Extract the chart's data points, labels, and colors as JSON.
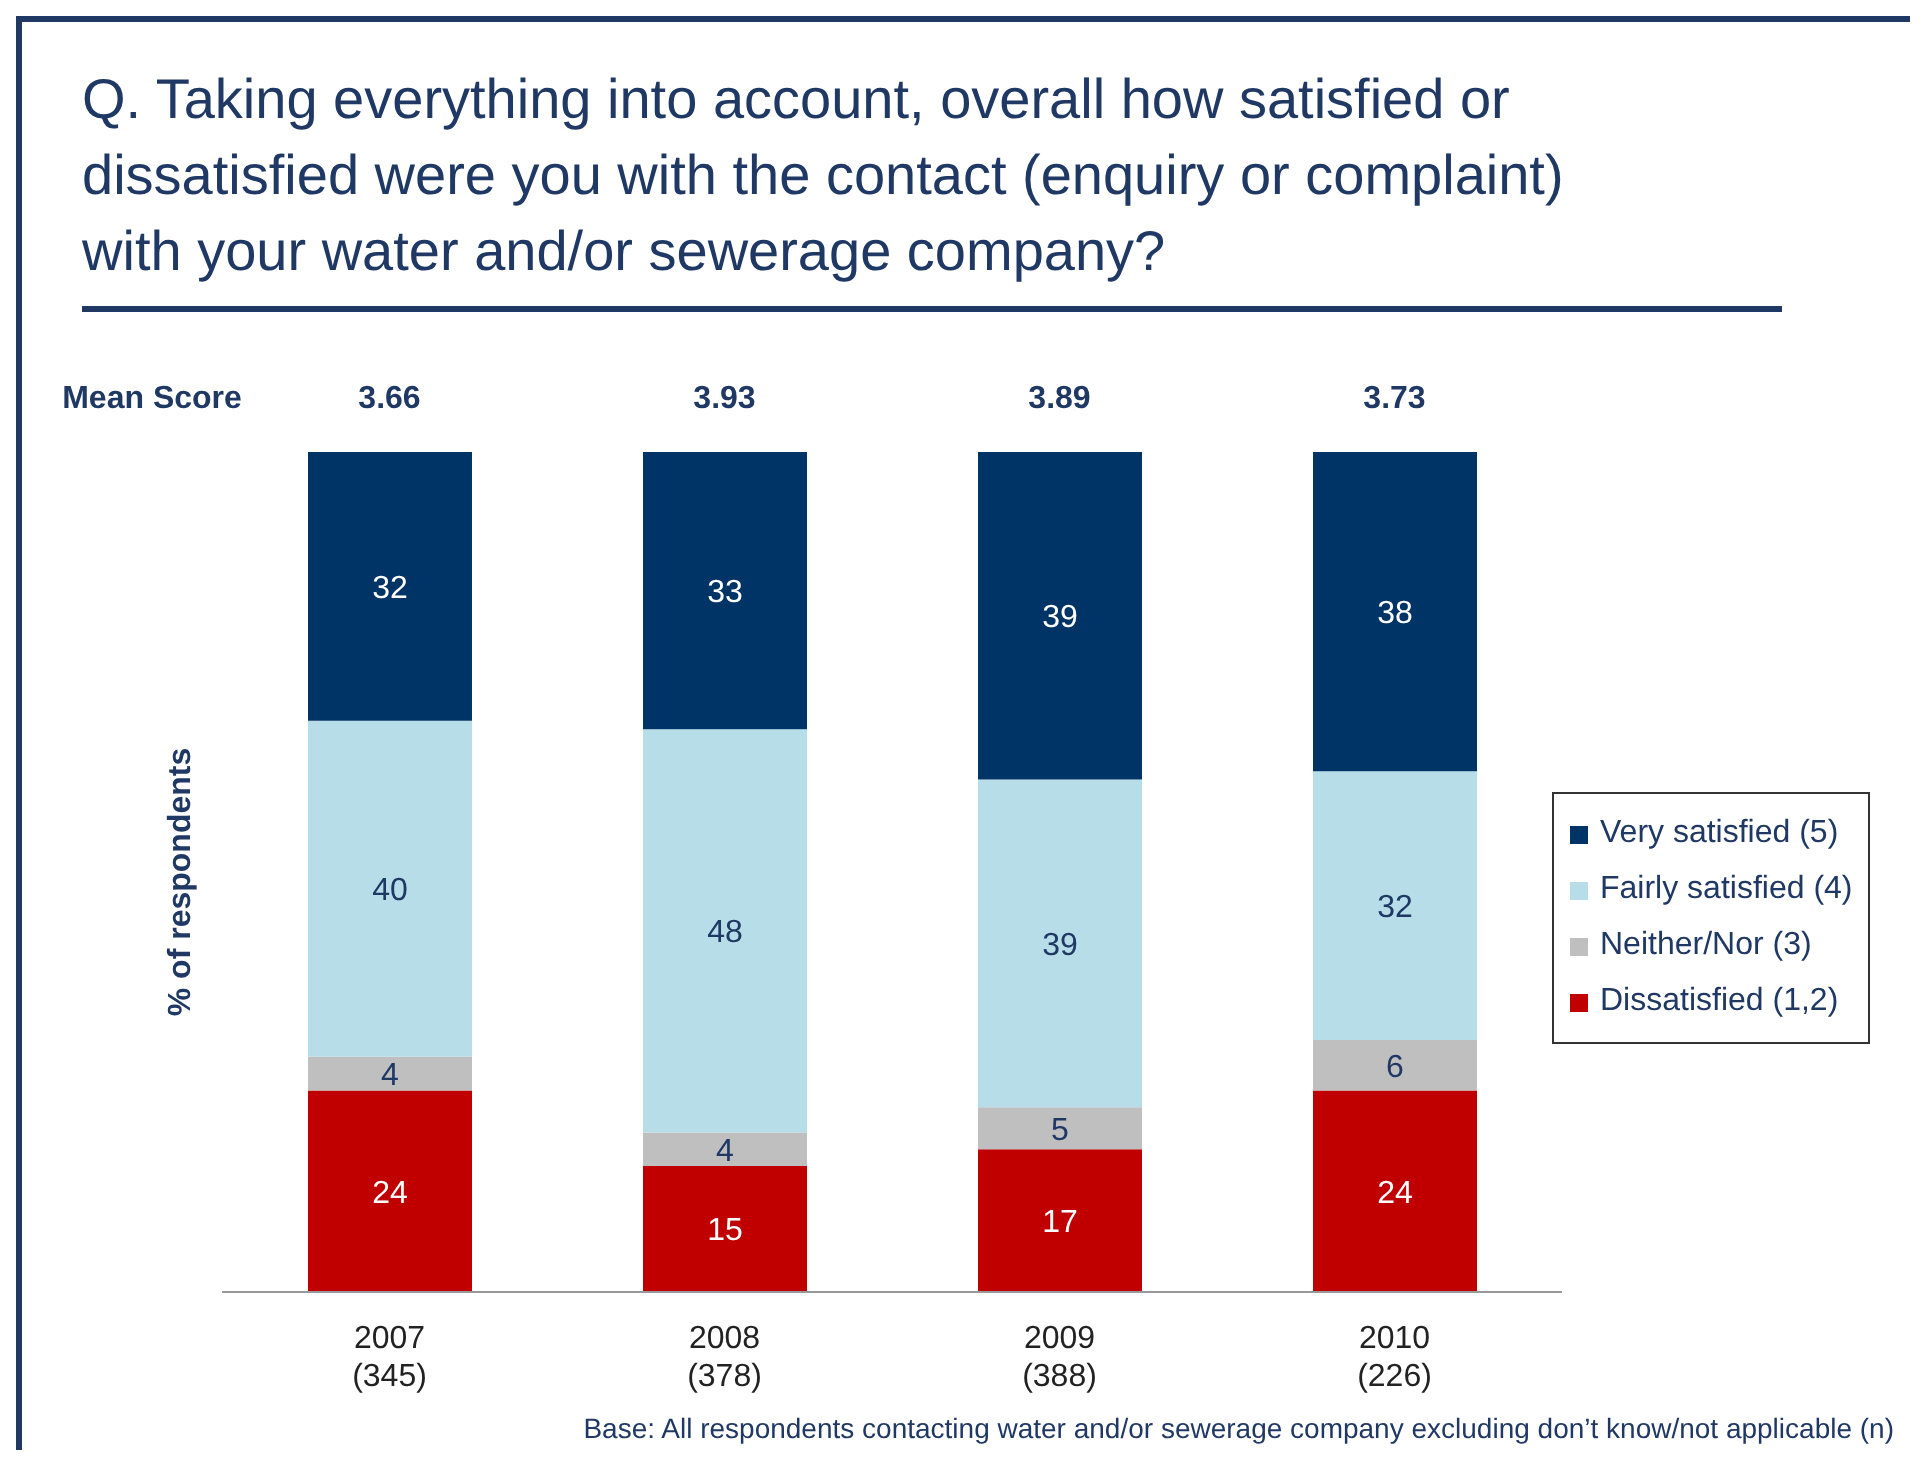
{
  "chart_data": {
    "type": "bar",
    "stacked": true,
    "title": "Q.  Taking everything into account, overall how satisfied or dissatisfied were you with the contact (enquiry or complaint) with your water and/or sewerage company?",
    "ylabel": "% of respondents",
    "categories": [
      "2007\n(345)",
      "2008\n(378)",
      "2009\n(388)",
      "2010\n(226)"
    ],
    "series": [
      {
        "name": "Dissatisfied (1,2)",
        "color": "#c00000",
        "values": [
          24,
          15,
          17,
          24
        ]
      },
      {
        "name": "Neither/Nor (3)",
        "color": "#bfbfbf",
        "values": [
          4,
          4,
          5,
          6
        ]
      },
      {
        "name": "Fairly satisfied (4)",
        "color": "#b7dee8",
        "values": [
          40,
          48,
          39,
          32
        ]
      },
      {
        "name": "Very satisfied (5)",
        "color": "#003366",
        "values": [
          32,
          33,
          39,
          38
        ]
      }
    ],
    "data_labels": true,
    "legend": "right",
    "annotations": [
      "Mean Score",
      "3.66",
      "3.93",
      "3.89",
      "3.73",
      "Base: All respondents contacting water and/or sewerage company excluding don’t know/not applicable (n)"
    ]
  }
}
